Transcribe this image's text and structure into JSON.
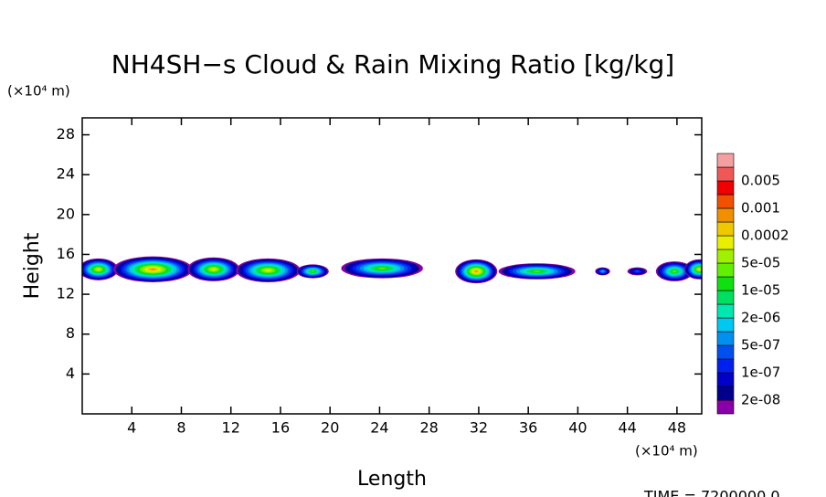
{
  "chart_data": {
    "type": "contour",
    "title": "NH4SH−s Cloud & Rain Mixing Ratio [kg/kg]",
    "x_label": "Length",
    "y_label": "Height",
    "x_unit": "(×10⁴ m)",
    "y_unit": "(×10⁴ m)",
    "footer": "TIME = 7200000.0",
    "xlim": [
      0,
      50
    ],
    "ylim": [
      0,
      29.7
    ],
    "xticks": [
      4,
      8,
      12,
      16,
      20,
      24,
      28,
      32,
      36,
      40,
      44,
      48
    ],
    "yticks": [
      4,
      8,
      12,
      16,
      20,
      24,
      28
    ],
    "colors": [
      "#8a00a8",
      "#00008c",
      "#0000c8",
      "#0020f0",
      "#0050f0",
      "#0090f0",
      "#00c8f0",
      "#00e8b0",
      "#00e060",
      "#10e010",
      "#60f000",
      "#a0f000",
      "#e8f000",
      "#f0c800",
      "#f09000",
      "#f05000",
      "#f00000",
      "#f05858",
      "#f4a0a0"
    ],
    "levels": [
      {
        "value": 2e-08,
        "label": "2e-08"
      },
      {
        "value": 1e-07,
        "label": "1e-07"
      },
      {
        "value": 5e-07,
        "label": "5e-07"
      },
      {
        "value": 2e-06,
        "label": "2e-06"
      },
      {
        "value": 1e-05,
        "label": "1e-05"
      },
      {
        "value": 5e-05,
        "label": "5e-05"
      },
      0.0002,
      0.001,
      0.005
    ],
    "cells": [
      {
        "x": 1.3,
        "y": 14.5,
        "rx": 1.6,
        "ry": 1.1,
        "peak": 5e-05
      },
      {
        "x": 5.7,
        "y": 14.5,
        "rx": 3.2,
        "ry": 1.3,
        "peak": 0.0002
      },
      {
        "x": 10.6,
        "y": 14.5,
        "rx": 2.1,
        "ry": 1.2,
        "peak": 5e-05
      },
      {
        "x": 15.0,
        "y": 14.4,
        "rx": 2.6,
        "ry": 1.2,
        "peak": 5e-05
      },
      {
        "x": 18.6,
        "y": 14.3,
        "rx": 1.3,
        "ry": 0.7,
        "peak": 1e-05
      },
      {
        "x": 24.2,
        "y": 14.6,
        "rx": 3.3,
        "ry": 1.0,
        "peak": 1e-05
      },
      {
        "x": 31.8,
        "y": 14.3,
        "rx": 1.7,
        "ry": 1.2,
        "peak": 0.0002
      },
      {
        "x": 36.7,
        "y": 14.3,
        "rx": 3.1,
        "ry": 0.8,
        "peak": 1e-05
      },
      {
        "x": 42.0,
        "y": 14.3,
        "rx": 0.6,
        "ry": 0.4,
        "peak": 5e-07
      },
      {
        "x": 44.8,
        "y": 14.3,
        "rx": 0.8,
        "ry": 0.4,
        "peak": 1e-07
      },
      {
        "x": 47.8,
        "y": 14.3,
        "rx": 1.5,
        "ry": 1.0,
        "peak": 1e-05
      },
      {
        "x": 49.8,
        "y": 14.5,
        "rx": 1.2,
        "ry": 1.0,
        "peak": 5e-05
      }
    ]
  }
}
